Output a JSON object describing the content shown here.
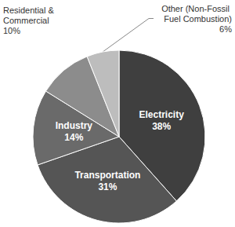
{
  "chart_data": {
    "type": "pie",
    "categories": [
      "Electricity",
      "Transportation",
      "Industry",
      "Residential & Commercial",
      "Other (Non-Fossil Fuel Combustion)"
    ],
    "values": [
      38,
      31,
      14,
      10,
      6
    ],
    "value_labels": [
      "38%",
      "31%",
      "14%",
      "10%",
      "6%"
    ],
    "colors": [
      "#3f3f3f",
      "#555555",
      "#6a6a6a",
      "#8c8c8c",
      "#bdbdbd"
    ],
    "data_labels": true
  }
}
